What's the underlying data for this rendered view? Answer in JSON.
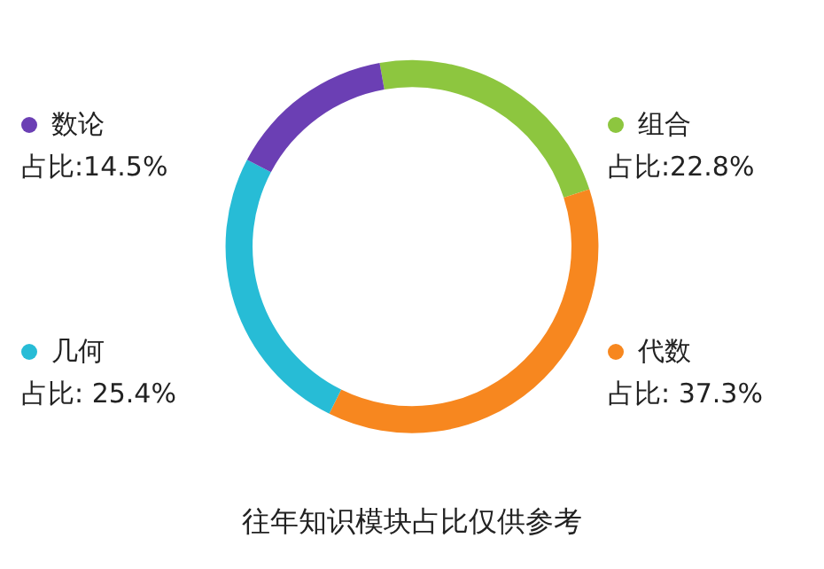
{
  "chart_data": {
    "type": "donut",
    "title": "往年知识模块占比仅供参考",
    "categories": [
      "组合",
      "代数",
      "几何",
      "数论"
    ],
    "values": [
      22.8,
      37.3,
      25.4,
      14.5
    ],
    "colors": [
      "#8dc63f",
      "#f7871f",
      "#27bcd6",
      "#6b3fb4"
    ],
    "value_labels": [
      "占比:22.8%",
      "占比: 37.3%",
      "占比: 25.4%",
      "占比:14.5%"
    ],
    "legend": true
  }
}
